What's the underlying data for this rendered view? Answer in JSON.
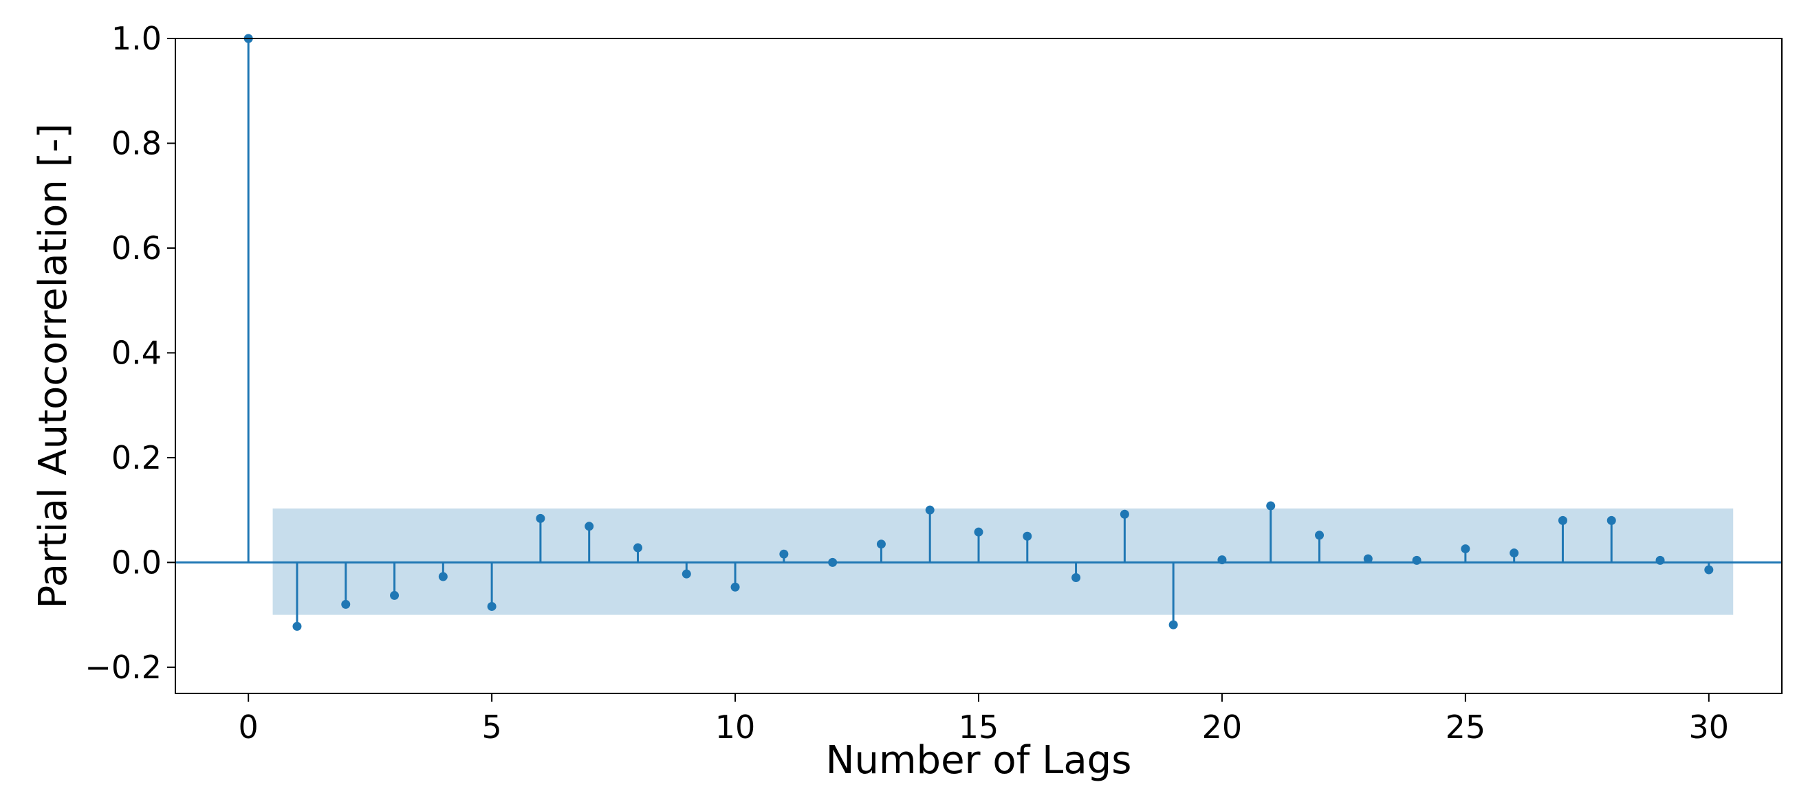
{
  "chart_data": {
    "type": "stem",
    "title": "",
    "xlabel": "Number of Lags",
    "ylabel": "Partial Autocorrelation [-]",
    "xlim": [
      -1.5,
      31.5
    ],
    "ylim": [
      -0.25,
      1.0
    ],
    "xticks": [
      0,
      5,
      10,
      15,
      20,
      25,
      30
    ],
    "yticks": [
      -0.2,
      0.0,
      0.2,
      0.4,
      0.6,
      0.8,
      1.0
    ],
    "xtick_labels": [
      "0",
      "5",
      "10",
      "15",
      "20",
      "25",
      "30"
    ],
    "ytick_labels": [
      "−0.2",
      "0.0",
      "0.2",
      "0.4",
      "0.6",
      "0.8",
      "1.0"
    ],
    "grid": false,
    "color": "#1f77b4",
    "confidence_band": {
      "x_range": [
        0.5,
        30.5
      ],
      "lower": -0.1,
      "upper": 0.103,
      "color": "#1f77b4"
    },
    "lags": [
      0,
      1,
      2,
      3,
      4,
      5,
      6,
      7,
      8,
      9,
      10,
      11,
      12,
      13,
      14,
      15,
      16,
      17,
      18,
      19,
      20,
      21,
      22,
      23,
      24,
      25,
      26,
      27,
      28,
      29,
      30
    ],
    "values": [
      1.0,
      -0.122,
      -0.08,
      -0.063,
      -0.027,
      -0.084,
      0.084,
      0.069,
      0.028,
      -0.022,
      -0.047,
      0.016,
      0.0,
      0.035,
      0.1,
      0.058,
      0.05,
      -0.029,
      0.092,
      -0.119,
      0.005,
      0.108,
      0.052,
      0.007,
      0.004,
      0.026,
      0.018,
      0.08,
      0.08,
      0.004,
      -0.014
    ]
  }
}
